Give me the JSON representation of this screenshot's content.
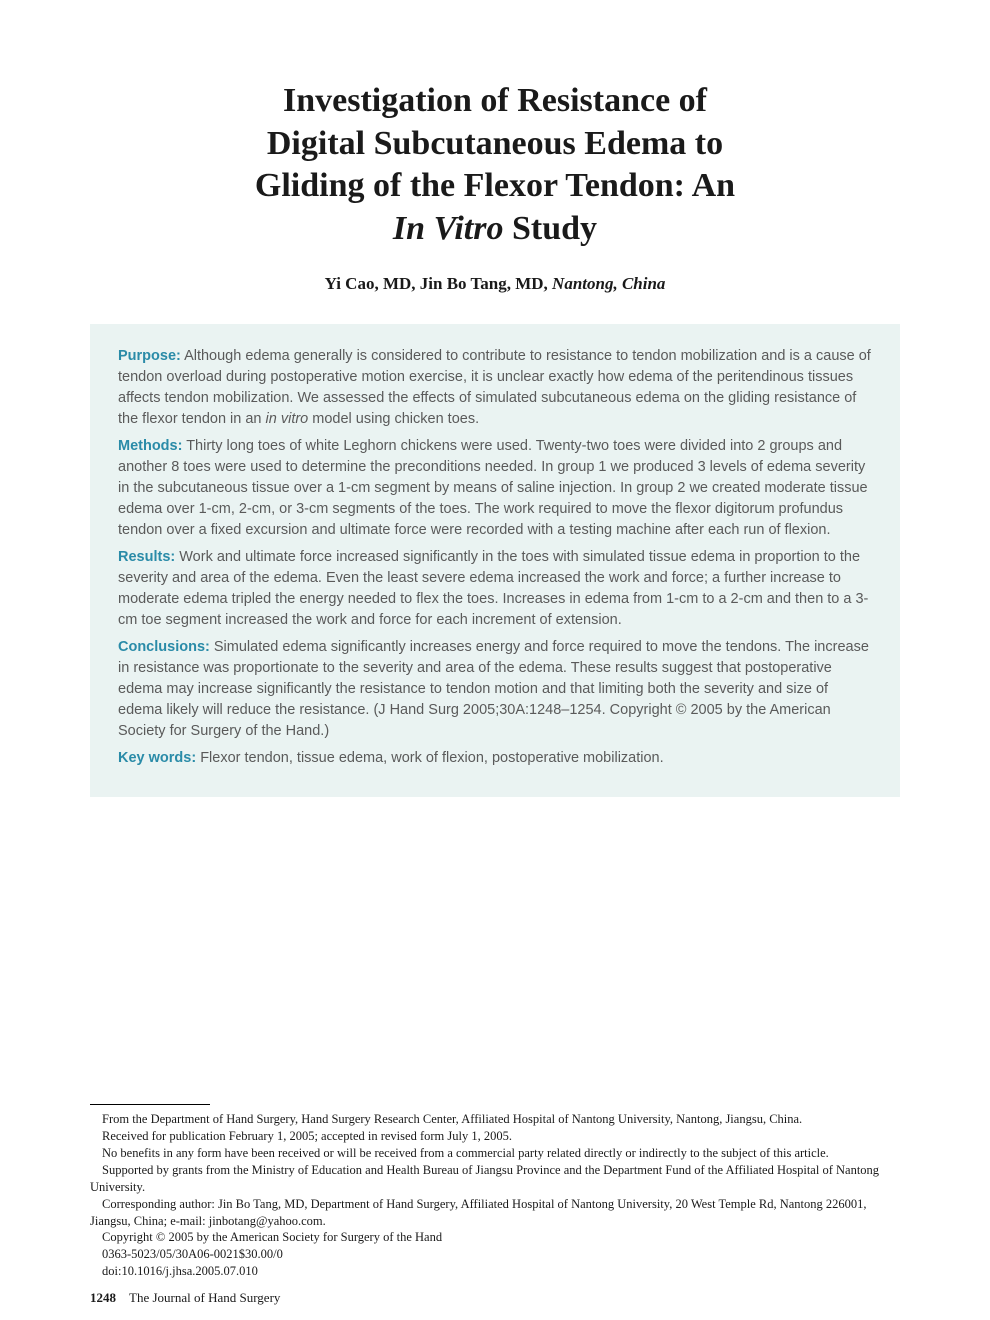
{
  "title_line1": "Investigation of Resistance of",
  "title_line2": "Digital Subcutaneous Edema to",
  "title_line3": "Gliding of the Flexor Tendon: An",
  "title_line4_italic": "In Vitro",
  "title_line4_rest": " Study",
  "authors_plain": "Yi Cao, MD, Jin Bo Tang, MD, ",
  "authors_loc": "Nantong, China",
  "abstract": {
    "purpose_label": "Purpose:",
    "purpose_text": " Although edema generally is considered to contribute to resistance to tendon mobilization and is a cause of tendon overload during postoperative motion exercise, it is unclear exactly how edema of the peritendinous tissues affects tendon mobilization. We assessed the effects of simulated subcutaneous edema on the gliding resistance of the flexor tendon in an ",
    "purpose_italic": "in vitro",
    "purpose_text2": " model using chicken toes.",
    "methods_label": "Methods:",
    "methods_text": " Thirty long toes of white Leghorn chickens were used. Twenty-two toes were divided into 2 groups and another 8 toes were used to determine the preconditions needed. In group 1 we produced 3 levels of edema severity in the subcutaneous tissue over a 1-cm segment by means of saline injection. In group 2 we created moderate tissue edema over 1-cm, 2-cm, or 3-cm segments of the toes. The work required to move the flexor digitorum profundus tendon over a fixed excursion and ultimate force were recorded with a testing machine after each run of flexion.",
    "results_label": "Results:",
    "results_text": " Work and ultimate force increased significantly in the toes with simulated tissue edema in proportion to the severity and area of the edema. Even the least severe edema increased the work and force; a further increase to moderate edema tripled the energy needed to flex the toes. Increases in edema from 1-cm to a 2-cm and then to a 3-cm toe segment increased the work and force for each increment of extension.",
    "conclusions_label": "Conclusions:",
    "conclusions_text": " Simulated edema significantly increases energy and force required to move the tendons. The increase in resistance was proportionate to the severity and area of the edema. These results suggest that postoperative edema may increase significantly the resistance to tendon motion and that limiting both the severity and size of edema likely will reduce the resistance. (J Hand Surg 2005;30A:1248–1254. Copyright © 2005 by the American Society for Surgery of the Hand.)",
    "keywords_label": "Key words:",
    "keywords_text": " Flexor tendon, tissue edema, work of flexion, postoperative mobilization."
  },
  "footnotes": {
    "l1": "From the Department of Hand Surgery, Hand Surgery Research Center, Affiliated Hospital of Nantong University, Nantong, Jiangsu, China.",
    "l2": "Received for publication February 1, 2005; accepted in revised form July 1, 2005.",
    "l3": "No benefits in any form have been received or will be received from a commercial party related directly or indirectly to the subject of this article.",
    "l4": "Supported by grants from the Ministry of Education and Health Bureau of Jiangsu Province and the Department Fund of the Affiliated Hospital of Nantong University.",
    "l5": "Corresponding author: Jin Bo Tang, MD, Department of Hand Surgery, Affiliated Hospital of Nantong University, 20 West Temple Rd, Nantong 226001, Jiangsu, China; e-mail: jinbotang@yahoo.com.",
    "l6": "Copyright © 2005 by the American Society for Surgery of the Hand",
    "l7": "0363-5023/05/30A06-0021$30.00/0",
    "l8": "doi:10.1016/j.jhsa.2005.07.010"
  },
  "footer": {
    "page": "1248",
    "journal": "The Journal of Hand Surgery"
  },
  "colors": {
    "abstract_bg": "#eaf3f2",
    "label_color": "#2a8ba8",
    "body_text": "#5a5a5a"
  }
}
